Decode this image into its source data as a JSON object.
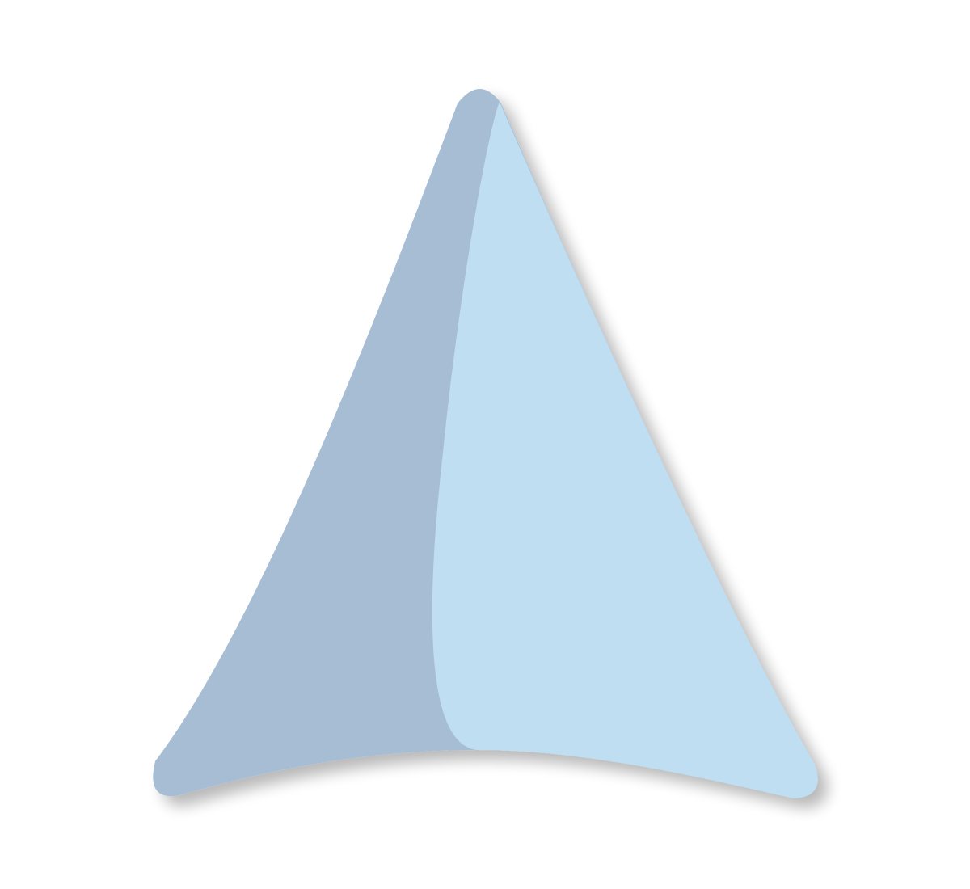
{
  "logo": {
    "icon": "sail-logo-icon",
    "colors": {
      "left_face": "#a7bdd4",
      "right_face": "#bfdef2",
      "shadow": "#000000",
      "background": "#ffffff"
    }
  }
}
